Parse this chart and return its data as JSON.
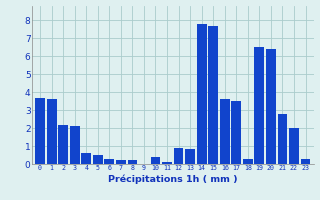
{
  "hours": [
    0,
    1,
    2,
    3,
    4,
    5,
    6,
    7,
    8,
    9,
    10,
    11,
    12,
    13,
    14,
    15,
    16,
    17,
    18,
    19,
    20,
    21,
    22,
    23
  ],
  "values": [
    3.7,
    3.6,
    2.2,
    2.1,
    0.6,
    0.5,
    0.3,
    0.25,
    0.2,
    0.0,
    0.4,
    0.1,
    0.9,
    0.85,
    7.8,
    7.7,
    3.6,
    3.5,
    0.3,
    6.5,
    6.4,
    2.8,
    2.0,
    0.3
  ],
  "bar_color": "#1144cc",
  "bg_color": "#dff0f0",
  "grid_color": "#aacccc",
  "xlabel": "Précipitations 1h ( mm )",
  "xlabel_color": "#1133bb",
  "tick_color": "#1133bb",
  "ylim": [
    0,
    8.8
  ],
  "yticks": [
    0,
    1,
    2,
    3,
    4,
    5,
    6,
    7,
    8
  ],
  "figwidth": 3.2,
  "figheight": 2.0,
  "dpi": 100
}
